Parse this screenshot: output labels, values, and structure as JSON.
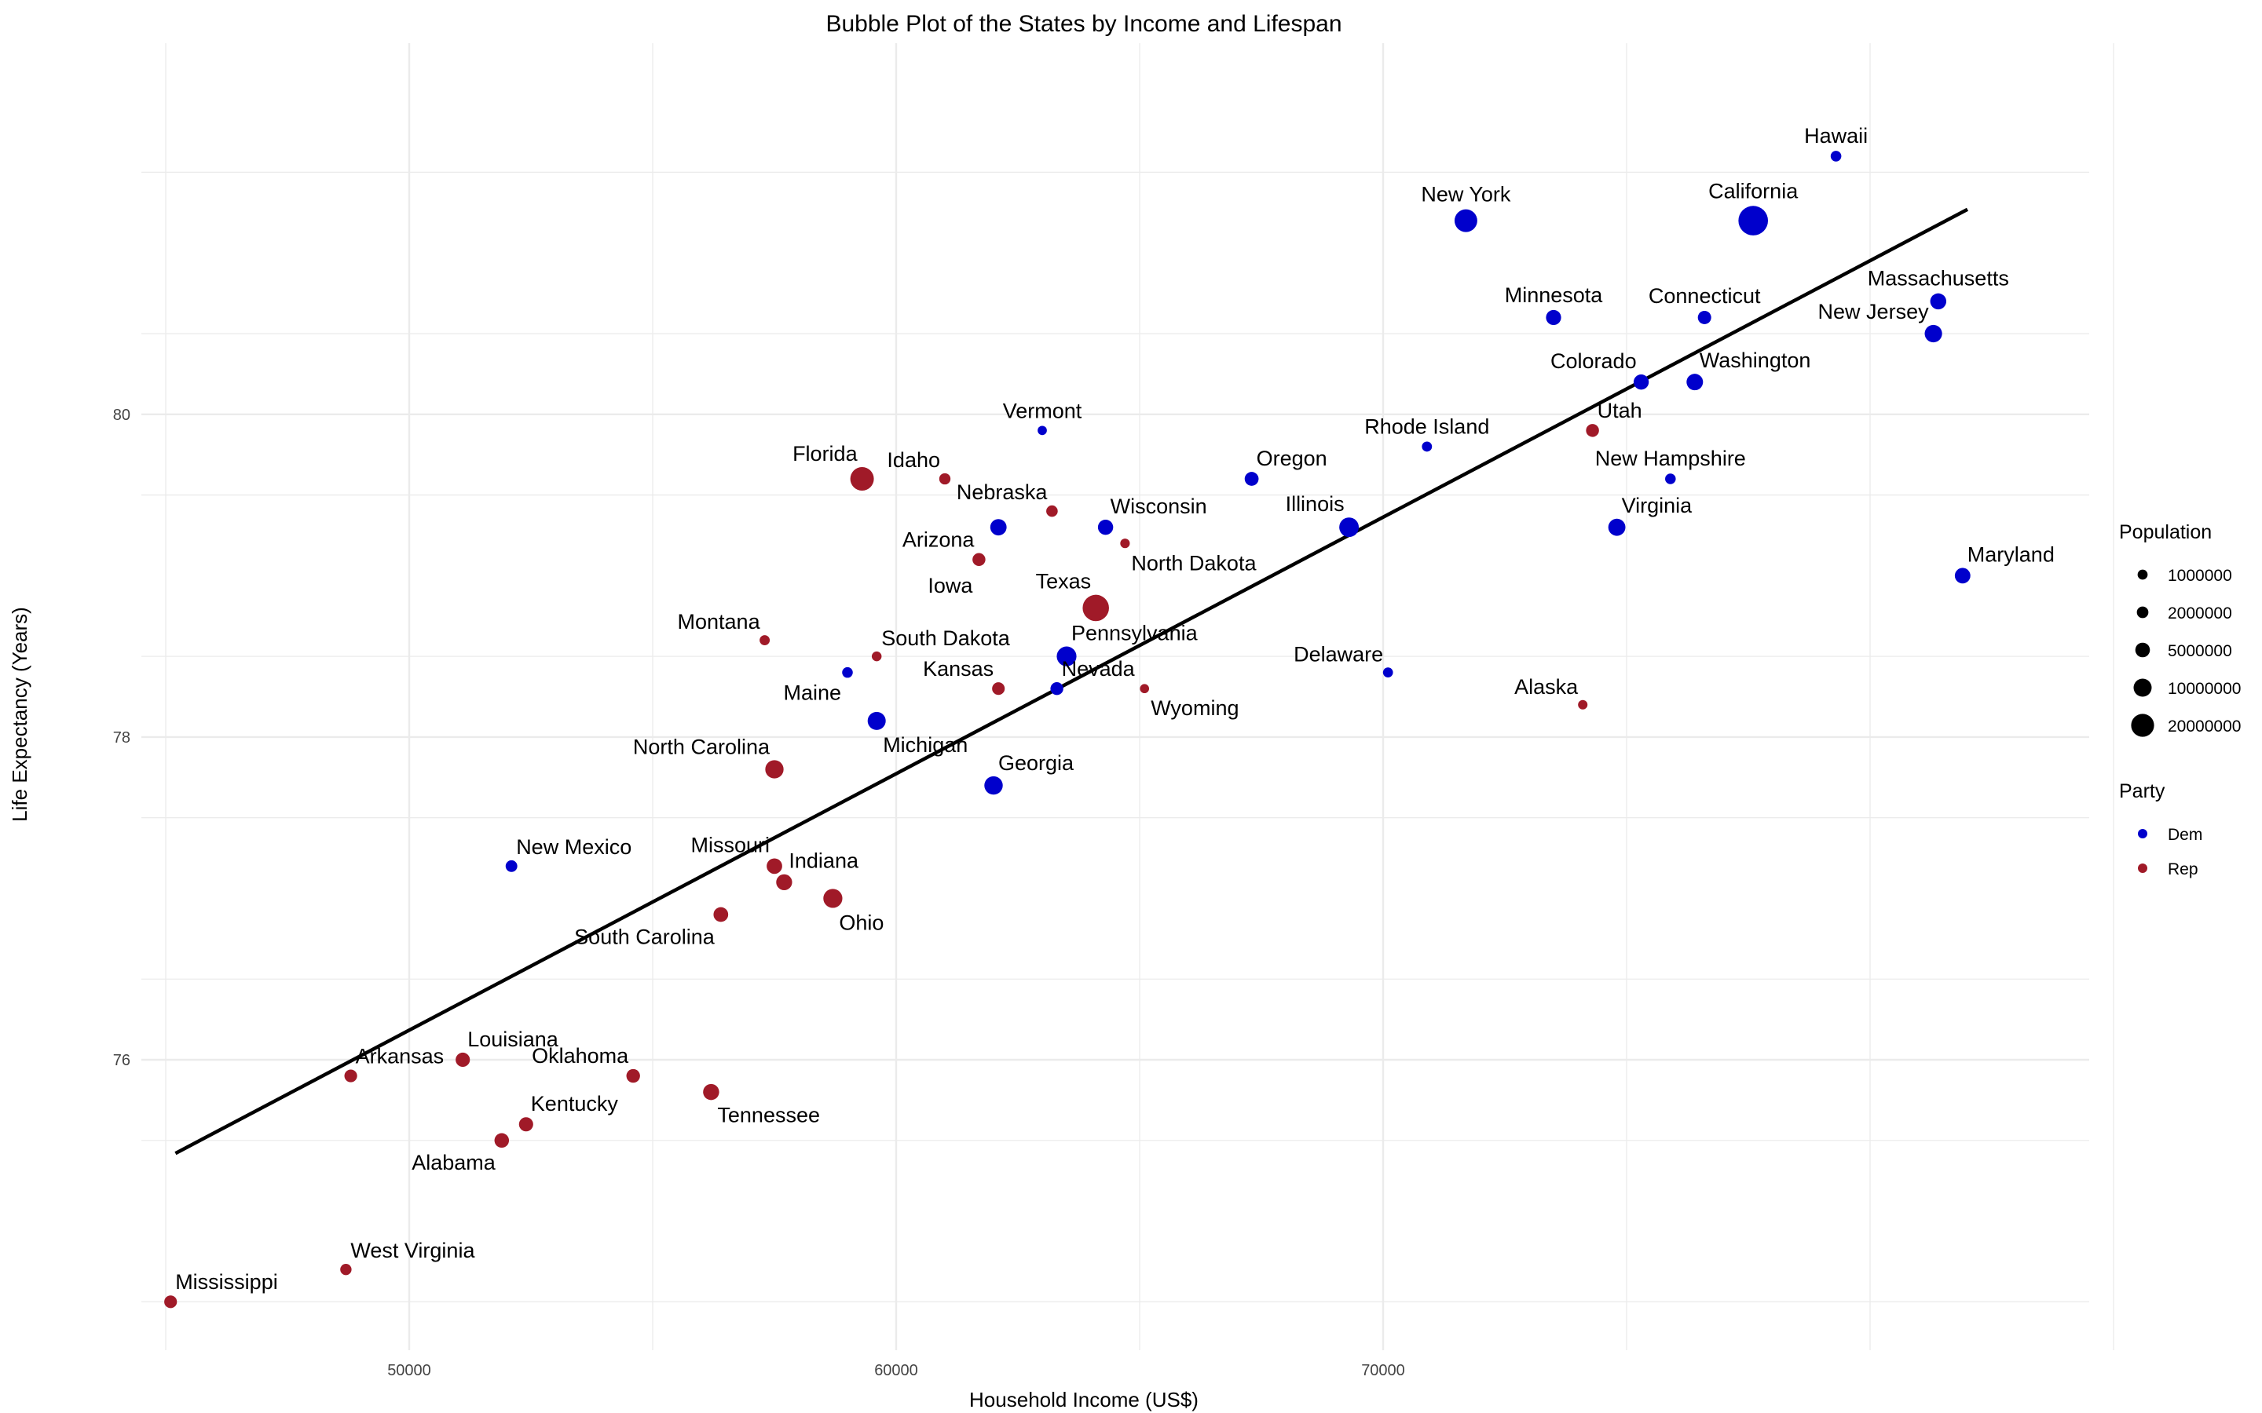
{
  "chart_data": {
    "type": "scatter",
    "title": "Bubble Plot of the States by Income and Lifespan",
    "xlabel": "Household Income (US$)",
    "ylabel": "Life Expectancy (Years)",
    "xlim": [
      44500,
      84500
    ],
    "ylim": [
      74.2,
      82.3
    ],
    "x_ticks": [
      50000,
      60000,
      70000
    ],
    "x_tick_labels": [
      "50000",
      "60000",
      "70000"
    ],
    "y_ticks": [
      76,
      78,
      80
    ],
    "y_tick_labels": [
      "76",
      "78",
      "80"
    ],
    "grid": true,
    "legend_position": "right",
    "colors": {
      "Dem": "#0000cc",
      "Rep": "#a01a28",
      "trend": "#000000",
      "grid": "#ebebeb"
    },
    "trend_line": {
      "x": [
        45200,
        82000
      ],
      "y": [
        75.42,
        81.27
      ]
    },
    "size_legend": {
      "title": "Population",
      "entries": [
        {
          "label": "1000000",
          "value": 1000000
        },
        {
          "label": "2000000",
          "value": 2000000
        },
        {
          "label": "5000000",
          "value": 5000000
        },
        {
          "label": "10000000",
          "value": 10000000
        },
        {
          "label": "20000000",
          "value": 20000000
        }
      ]
    },
    "color_legend": {
      "title": "Party",
      "entries": [
        {
          "label": "Dem",
          "party": "Dem"
        },
        {
          "label": "Rep",
          "party": "Rep"
        }
      ]
    },
    "points": [
      {
        "state": "Hawaii",
        "income": 79300,
        "life": 81.6,
        "population": 1400000,
        "party": "Dem",
        "label_pos": "above"
      },
      {
        "state": "New York",
        "income": 71700,
        "life": 81.2,
        "population": 19500000,
        "party": "Dem",
        "label_pos": "above"
      },
      {
        "state": "California",
        "income": 77600,
        "life": 81.2,
        "population": 39000000,
        "party": "Dem",
        "label_pos": "above"
      },
      {
        "state": "Minnesota",
        "income": 73500,
        "life": 80.6,
        "population": 5600000,
        "party": "Dem",
        "label_pos": "above"
      },
      {
        "state": "Connecticut",
        "income": 76600,
        "life": 80.6,
        "population": 3600000,
        "party": "Dem",
        "label_pos": "above"
      },
      {
        "state": "Massachusetts",
        "income": 81400,
        "life": 80.7,
        "population": 6900000,
        "party": "Dem",
        "label_pos": "above"
      },
      {
        "state": "New Jersey",
        "income": 81300,
        "life": 80.5,
        "population": 8900000,
        "party": "Dem",
        "label_pos": "left-above"
      },
      {
        "state": "Colorado",
        "income": 75300,
        "life": 80.2,
        "population": 5700000,
        "party": "Dem",
        "label_pos": "left-above"
      },
      {
        "state": "Washington",
        "income": 76400,
        "life": 80.2,
        "population": 7500000,
        "party": "Dem",
        "label_pos": "right-above"
      },
      {
        "state": "Utah",
        "income": 74300,
        "life": 79.9,
        "population": 3200000,
        "party": "Rep",
        "label_pos": "right-above"
      },
      {
        "state": "Vermont",
        "income": 63000,
        "life": 79.9,
        "population": 620000,
        "party": "Dem",
        "label_pos": "above"
      },
      {
        "state": "Rhode Island",
        "income": 70900,
        "life": 79.8,
        "population": 1050000,
        "party": "Dem",
        "label_pos": "above"
      },
      {
        "state": "Florida",
        "income": 59300,
        "life": 79.6,
        "population": 21500000,
        "party": "Rep",
        "label_pos": "left-above"
      },
      {
        "state": "Idaho",
        "income": 61000,
        "life": 79.6,
        "population": 1800000,
        "party": "Rep",
        "label_pos": "left-above"
      },
      {
        "state": "Oregon",
        "income": 67300,
        "life": 79.6,
        "population": 4200000,
        "party": "Dem",
        "label_pos": "right-above"
      },
      {
        "state": "New Hampshire",
        "income": 75900,
        "life": 79.6,
        "population": 1360000,
        "party": "Dem",
        "label_pos": "above"
      },
      {
        "state": "Nebraska",
        "income": 63200,
        "life": 79.4,
        "population": 1950000,
        "party": "Rep",
        "label_pos": "left-above"
      },
      {
        "state": "Wisconsin",
        "income": 64300,
        "life": 79.3,
        "population": 5800000,
        "party": "Dem",
        "label_pos": "right-above"
      },
      {
        "state": "Illinois",
        "income": 69300,
        "life": 79.3,
        "population": 12700000,
        "party": "Dem",
        "label_pos": "left-above"
      },
      {
        "state": "Virginia",
        "income": 74800,
        "life": 79.3,
        "population": 8500000,
        "party": "Dem",
        "label_pos": "right-above"
      },
      {
        "state": "Arizona",
        "income": 62100,
        "life": 79.3,
        "population": 7300000,
        "party": "Dem",
        "label_pos": "none"
      },
      {
        "state": "Arizona",
        "income": 61700,
        "life": 79.1,
        "population": 3200000,
        "party": "Rep",
        "label_pos": "left-above"
      },
      {
        "state": "North Dakota",
        "income": 64700,
        "life": 79.2,
        "population": 760000,
        "party": "Rep",
        "label_pos": "right-below"
      },
      {
        "state": "Iowa",
        "income": 61700,
        "life": 79.1,
        "population": 3200000,
        "party": "Rep",
        "label_pos": "label-only-below-left"
      },
      {
        "state": "Maryland",
        "income": 81900,
        "life": 79.0,
        "population": 6200000,
        "party": "Dem",
        "label_pos": "right-above"
      },
      {
        "state": "Texas",
        "income": 64100,
        "life": 78.8,
        "population": 29000000,
        "party": "Rep",
        "label_pos": "left-above"
      },
      {
        "state": "Montana",
        "income": 57300,
        "life": 78.6,
        "population": 1080000,
        "party": "Rep",
        "label_pos": "left-above"
      },
      {
        "state": "South Dakota",
        "income": 59600,
        "life": 78.5,
        "population": 880000,
        "party": "Rep",
        "label_pos": "right-above"
      },
      {
        "state": "Pennsylvania",
        "income": 63500,
        "life": 78.5,
        "population": 13000000,
        "party": "Dem",
        "label_pos": "right-above"
      },
      {
        "state": "Maine",
        "income": 59000,
        "life": 78.4,
        "population": 1360000,
        "party": "Dem",
        "label_pos": "left-below"
      },
      {
        "state": "Delaware",
        "income": 70100,
        "life": 78.4,
        "population": 990000,
        "party": "Dem",
        "label_pos": "left-above"
      },
      {
        "state": "Kansas",
        "income": 62100,
        "life": 78.3,
        "population": 2900000,
        "party": "Rep",
        "label_pos": "left-above"
      },
      {
        "state": "Nevada",
        "income": 63300,
        "life": 78.3,
        "population": 3100000,
        "party": "Dem",
        "label_pos": "right-above"
      },
      {
        "state": "Wyoming",
        "income": 65100,
        "life": 78.3,
        "population": 580000,
        "party": "Rep",
        "label_pos": "right-below"
      },
      {
        "state": "Alaska",
        "income": 74100,
        "life": 78.2,
        "population": 730000,
        "party": "Rep",
        "label_pos": "left-above"
      },
      {
        "state": "Michigan",
        "income": 59600,
        "life": 78.1,
        "population": 10000000,
        "party": "Dem",
        "label_pos": "right-below"
      },
      {
        "state": "North Carolina",
        "income": 57500,
        "life": 77.8,
        "population": 10400000,
        "party": "Rep",
        "label_pos": "left-above"
      },
      {
        "state": "Georgia",
        "income": 62000,
        "life": 77.7,
        "population": 10600000,
        "party": "Dem",
        "label_pos": "right-above"
      },
      {
        "state": "New Mexico",
        "income": 52100,
        "life": 77.2,
        "population": 2100000,
        "party": "Dem",
        "label_pos": "right-above"
      },
      {
        "state": "Missouri",
        "income": 57500,
        "life": 77.2,
        "population": 6100000,
        "party": "Rep",
        "label_pos": "left-above"
      },
      {
        "state": "Indiana",
        "income": 57700,
        "life": 77.1,
        "population": 6700000,
        "party": "Rep",
        "label_pos": "right-above"
      },
      {
        "state": "Ohio",
        "income": 58700,
        "life": 77.0,
        "population": 11700000,
        "party": "Rep",
        "label_pos": "right-below"
      },
      {
        "state": "South Carolina",
        "income": 56400,
        "life": 76.9,
        "population": 5100000,
        "party": "Rep",
        "label_pos": "left-below"
      },
      {
        "state": "Louisiana",
        "income": 51100,
        "life": 76.0,
        "population": 4600000,
        "party": "Rep",
        "label_pos": "right-above"
      },
      {
        "state": "Arkansas",
        "income": 48800,
        "life": 75.9,
        "population": 3000000,
        "party": "Rep",
        "label_pos": "right-above"
      },
      {
        "state": "Oklahoma",
        "income": 54600,
        "life": 75.9,
        "population": 3900000,
        "party": "Rep",
        "label_pos": "left-above"
      },
      {
        "state": "Tennessee",
        "income": 56200,
        "life": 75.8,
        "population": 6900000,
        "party": "Rep",
        "label_pos": "right-below"
      },
      {
        "state": "Kentucky",
        "income": 52400,
        "life": 75.6,
        "population": 4500000,
        "party": "Rep",
        "label_pos": "right-above"
      },
      {
        "state": "Alabama",
        "income": 51900,
        "life": 75.5,
        "population": 4900000,
        "party": "Rep",
        "label_pos": "left-below"
      },
      {
        "state": "West Virginia",
        "income": 48700,
        "life": 74.7,
        "population": 1800000,
        "party": "Rep",
        "label_pos": "right-above"
      },
      {
        "state": "Mississippi",
        "income": 45100,
        "life": 74.5,
        "population": 2980000,
        "party": "Rep",
        "label_pos": "right-above"
      }
    ]
  }
}
